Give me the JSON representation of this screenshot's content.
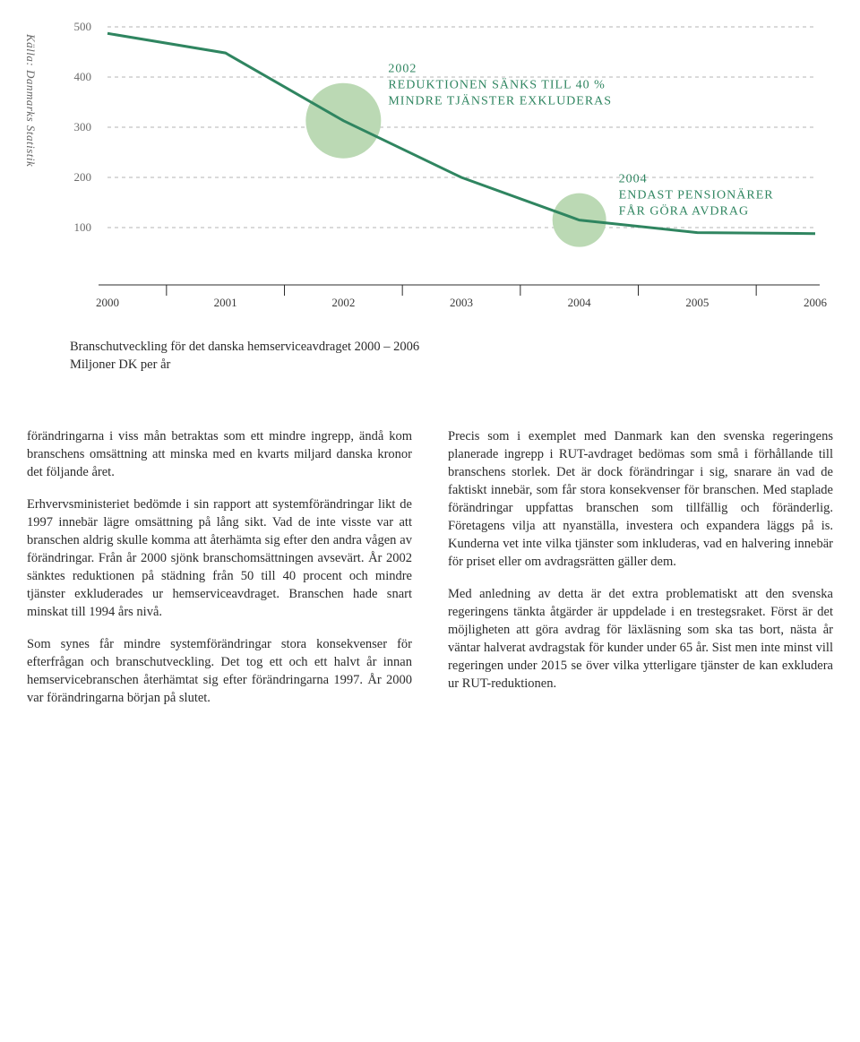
{
  "chart": {
    "type": "line",
    "x_categories": [
      "2000",
      "2001",
      "2002",
      "2003",
      "2004",
      "2005",
      "2006"
    ],
    "y_values": [
      487,
      448,
      313,
      200,
      115,
      90,
      88
    ],
    "line_color": "#2f8560",
    "line_width": 3,
    "grid_color": "#b5b5b5",
    "axis_color": "#2b2b2b",
    "background_color": "#ffffff",
    "ylim": [
      0,
      500
    ],
    "yticks": [
      100,
      200,
      300,
      400,
      500
    ],
    "tick_fontsize": 13,
    "circle_fill": "#bbd9b4",
    "circle_radius_2002": 42,
    "circle_radius_2004": 30,
    "annot1": {
      "year_label": "2002",
      "line1": "REDUKTIONEN SÄNKS TILL 40 %",
      "line2": "MINDRE TJÄNSTER EXKLUDERAS",
      "color": "#2f8560",
      "fontsize": 14
    },
    "annot2": {
      "year_label": "2004",
      "line1": "ENDAST PENSIONÄRER",
      "line2": "FÅR GÖRA AVDRAG",
      "color": "#2f8560",
      "fontsize": 14
    },
    "source_label": "Källa: Danmarks Statistik",
    "source_fontsize": 13,
    "source_color": "#666666"
  },
  "caption": {
    "line1": "Branschutveckling för det danska hemserviceavdraget 2000 – 2006",
    "line2": "Miljoner DK per år"
  },
  "left_col": {
    "p1": "förändringarna i viss mån betraktas som ett mindre ingrepp, ändå kom branschens omsättning att minska med en kvarts miljard danska kronor det följande året.",
    "p2": "Erhvervsministeriet bedömde i sin rapport att systemförändringar likt de 1997 innebär lägre omsättning på lång sikt. Vad de inte visste var att branschen aldrig skulle komma att återhämta sig efter den andra vågen av förändringar. Från år 2000 sjönk branschomsättningen avsevärt. År 2002 sänktes reduktionen på städning från 50 till 40 procent och mindre tjänster exkluderades ur hemserviceavdraget. Branschen hade snart minskat till 1994 års nivå.",
    "p3": "Som synes får mindre systemförändringar stora konsekvenser för efterfrågan och branschutveckling. Det tog ett och ett halvt år innan hemservicebranschen återhämtat sig efter förändringarna 1997. År 2000 var förändringarna början på slutet."
  },
  "right_col": {
    "p1": "Precis som i exemplet med Danmark kan den svenska regeringens planerade ingrepp i RUT-avdraget bedömas som små i förhållande till branschens storlek. Det är dock förändringar i sig, snarare än vad de faktiskt innebär, som får stora konsekvenser för branschen. Med staplade förändringar uppfattas branschen som tillfällig och föränderlig. Företagens vilja att nyanställa, investera och expandera läggs på is. Kunderna vet inte vilka tjänster som inkluderas, vad en halvering innebär för priset eller om avdragsrätten gäller dem.",
    "p2": "Med anledning av detta är det extra problematiskt att den svenska regeringens tänkta åtgärder är uppdelade i en trestegsraket. Först är det möjligheten att göra avdrag för läxläsning som ska tas bort, nästa år väntar halverat avdragstak för kunder under 65 år. Sist men inte minst vill regeringen under 2015 se över vilka ytterligare tjänster de kan exkludera ur RUT-reduktionen."
  }
}
